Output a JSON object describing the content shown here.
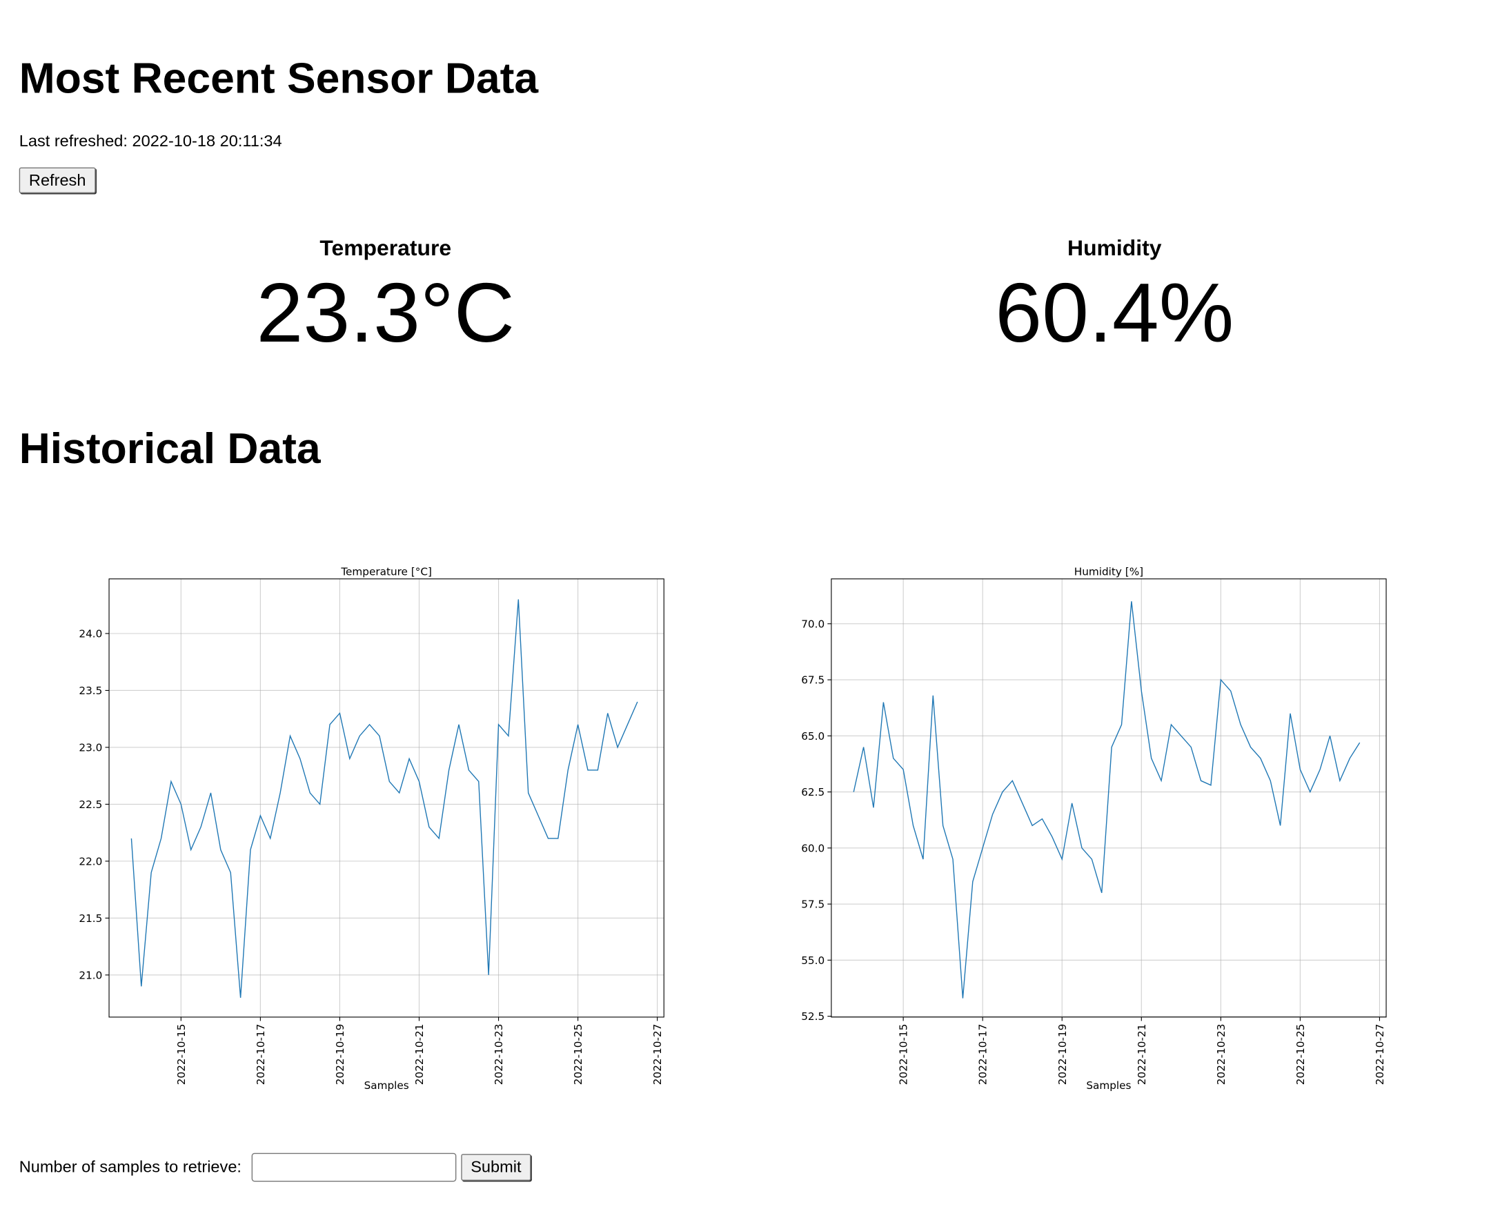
{
  "header": {
    "title": "Most Recent Sensor Data",
    "last_refreshed": "Last refreshed: 2022-10-18 20:11:34",
    "refresh_button": "Refresh"
  },
  "readings": [
    {
      "label": "Temperature",
      "value": "23.3°C"
    },
    {
      "label": "Humidity",
      "value": "60.4%"
    }
  ],
  "historical": {
    "title": "Historical Data"
  },
  "form": {
    "label": "Number of samples to retrieve:",
    "submit": "Submit"
  },
  "chart_data": [
    {
      "type": "line",
      "title": "Temperature [°C]",
      "x_label": "Samples",
      "grid": true,
      "x": [
        "2022-10-13T18:00",
        "2022-10-14T00:00",
        "2022-10-14T06:00",
        "2022-10-14T12:00",
        "2022-10-14T18:00",
        "2022-10-15T00:00",
        "2022-10-15T06:00",
        "2022-10-15T12:00",
        "2022-10-15T18:00",
        "2022-10-16T00:00",
        "2022-10-16T06:00",
        "2022-10-16T12:00",
        "2022-10-16T18:00",
        "2022-10-17T00:00",
        "2022-10-17T06:00",
        "2022-10-17T12:00",
        "2022-10-17T18:00",
        "2022-10-18T00:00",
        "2022-10-18T06:00",
        "2022-10-18T12:00",
        "2022-10-18T18:00",
        "2022-10-19T00:00",
        "2022-10-19T06:00",
        "2022-10-19T12:00",
        "2022-10-19T18:00",
        "2022-10-20T00:00",
        "2022-10-20T06:00",
        "2022-10-20T12:00",
        "2022-10-20T18:00",
        "2022-10-21T00:00",
        "2022-10-21T06:00",
        "2022-10-21T12:00",
        "2022-10-21T18:00",
        "2022-10-22T00:00",
        "2022-10-22T06:00",
        "2022-10-22T12:00",
        "2022-10-22T18:00",
        "2022-10-23T00:00",
        "2022-10-23T06:00",
        "2022-10-23T12:00",
        "2022-10-23T18:00",
        "2022-10-24T00:00",
        "2022-10-24T06:00",
        "2022-10-24T12:00",
        "2022-10-24T18:00",
        "2022-10-25T00:00",
        "2022-10-25T06:00",
        "2022-10-25T12:00",
        "2022-10-25T18:00",
        "2022-10-26T00:00",
        "2022-10-26T06:00",
        "2022-10-26T12:00"
      ],
      "series": [
        {
          "color": "#1f77b4",
          "values": [
            22.2,
            20.9,
            21.9,
            22.2,
            22.7,
            22.5,
            22.1,
            22.3,
            22.6,
            22.1,
            21.9,
            20.8,
            22.1,
            22.4,
            22.2,
            22.6,
            23.1,
            22.9,
            22.6,
            22.5,
            23.2,
            23.3,
            22.9,
            23.1,
            23.2,
            23.1,
            22.7,
            22.6,
            22.9,
            22.7,
            22.3,
            22.2,
            22.8,
            23.2,
            22.8,
            22.7,
            21.0,
            23.2,
            23.1,
            24.3,
            22.6,
            22.4,
            22.2,
            22.2,
            22.8,
            23.2,
            22.8,
            22.8,
            23.3,
            23.0,
            23.2,
            23.4
          ]
        }
      ],
      "xlim": [
        "2022-10-13T04:30",
        "2022-10-27T04:00"
      ],
      "xticks": [
        "2022-10-15",
        "2022-10-17",
        "2022-10-19",
        "2022-10-21",
        "2022-10-23",
        "2022-10-25",
        "2022-10-27"
      ],
      "ylim": [
        20.63,
        24.48
      ],
      "yticks": [
        {
          "value": 21,
          "label": "21.0"
        },
        21.5,
        {
          "value": 22,
          "label": "22.0"
        },
        22.5,
        {
          "value": 23,
          "label": "23.0"
        },
        23.5,
        {
          "value": 24,
          "label": "24.0"
        }
      ]
    },
    {
      "type": "line",
      "title": "Humidity [%]",
      "x_label": "Samples",
      "grid": true,
      "x": [
        "2022-10-13T18:00",
        "2022-10-14T00:00",
        "2022-10-14T06:00",
        "2022-10-14T12:00",
        "2022-10-14T18:00",
        "2022-10-15T00:00",
        "2022-10-15T06:00",
        "2022-10-15T12:00",
        "2022-10-15T18:00",
        "2022-10-16T00:00",
        "2022-10-16T06:00",
        "2022-10-16T12:00",
        "2022-10-16T18:00",
        "2022-10-17T00:00",
        "2022-10-17T06:00",
        "2022-10-17T12:00",
        "2022-10-17T18:00",
        "2022-10-18T00:00",
        "2022-10-18T06:00",
        "2022-10-18T12:00",
        "2022-10-18T18:00",
        "2022-10-19T00:00",
        "2022-10-19T06:00",
        "2022-10-19T12:00",
        "2022-10-19T18:00",
        "2022-10-20T00:00",
        "2022-10-20T06:00",
        "2022-10-20T12:00",
        "2022-10-20T18:00",
        "2022-10-21T00:00",
        "2022-10-21T06:00",
        "2022-10-21T12:00",
        "2022-10-21T18:00",
        "2022-10-22T00:00",
        "2022-10-22T06:00",
        "2022-10-22T12:00",
        "2022-10-22T18:00",
        "2022-10-23T00:00",
        "2022-10-23T06:00",
        "2022-10-23T12:00",
        "2022-10-23T18:00",
        "2022-10-24T00:00",
        "2022-10-24T06:00",
        "2022-10-24T12:00",
        "2022-10-24T18:00",
        "2022-10-25T00:00",
        "2022-10-25T06:00",
        "2022-10-25T12:00",
        "2022-10-25T18:00",
        "2022-10-26T00:00",
        "2022-10-26T06:00",
        "2022-10-26T12:00"
      ],
      "series": [
        {
          "color": "#1f77b4",
          "values": [
            62.5,
            64.5,
            61.8,
            66.5,
            64.0,
            63.5,
            61.0,
            59.5,
            66.8,
            61.0,
            59.5,
            53.3,
            58.5,
            60.0,
            61.5,
            62.5,
            63.0,
            62.0,
            61.0,
            61.3,
            60.5,
            59.5,
            62.0,
            60.0,
            59.5,
            58.0,
            64.5,
            65.5,
            71.0,
            67.0,
            64.0,
            63.0,
            65.5,
            65.0,
            64.5,
            63.0,
            62.8,
            67.5,
            67.0,
            65.5,
            64.5,
            64.0,
            63.0,
            61.0,
            66.0,
            63.5,
            62.5,
            63.5,
            65.0,
            63.0,
            64.0,
            64.7
          ]
        }
      ],
      "xlim": [
        "2022-10-13T04:30",
        "2022-10-27T04:00"
      ],
      "xticks": [
        "2022-10-15",
        "2022-10-17",
        "2022-10-19",
        "2022-10-21",
        "2022-10-23",
        "2022-10-25",
        "2022-10-27"
      ],
      "ylim": [
        52.46,
        72.0
      ],
      "yticks": [
        52.5,
        {
          "value": 55,
          "label": "55.0"
        },
        57.5,
        {
          "value": 60,
          "label": "60.0"
        },
        62.5,
        {
          "value": 65,
          "label": "65.0"
        },
        67.5,
        {
          "value": 70,
          "label": "70.0"
        }
      ]
    }
  ]
}
